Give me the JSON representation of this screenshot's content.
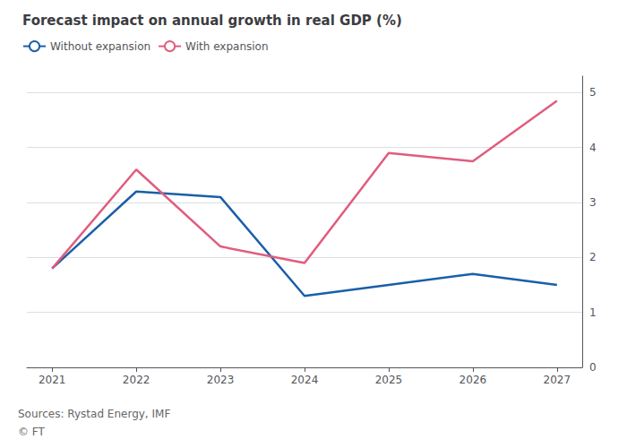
{
  "chart_data": {
    "type": "line",
    "title": "Forecast impact on annual growth in real GDP (%)",
    "annotations": [
      "Sources: Rystad Energy, IMF",
      "© FT"
    ],
    "x": [
      2021,
      2022,
      2023,
      2024,
      2025,
      2026,
      2027
    ],
    "series": [
      {
        "name": "Without expansion",
        "color": "#1a5fa8",
        "values": [
          1.8,
          3.2,
          3.1,
          1.3,
          1.5,
          1.7,
          1.5
        ]
      },
      {
        "name": "With expansion",
        "color": "#e05d7e",
        "values": [
          1.8,
          3.6,
          2.2,
          1.9,
          3.9,
          3.75,
          4.85
        ]
      }
    ],
    "xlim": [
      2020.7,
      2027.3
    ],
    "xticks": [
      2021,
      2022,
      2023,
      2024,
      2025,
      2026,
      2027
    ],
    "ylim": [
      0,
      5.3
    ],
    "yticks": [
      0,
      1,
      2,
      3,
      4,
      5
    ],
    "grid": true,
    "legend": "upper left"
  }
}
